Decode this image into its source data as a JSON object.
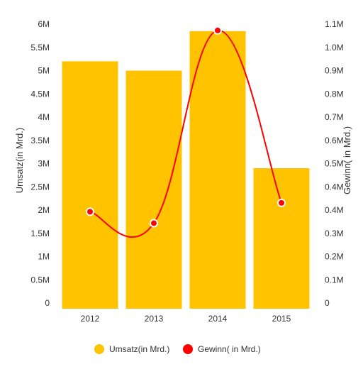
{
  "chart_data": {
    "type": "bar",
    "categories": [
      "2012",
      "2013",
      "2014",
      "2015"
    ],
    "ylabel_left": "Umsatz(in Mrd.)",
    "ylabel_right": "Gewinn( in Mrd.)",
    "y_left_ticks": [
      "0",
      "0.5M",
      "1M",
      "1.5M",
      "2M",
      "2.5M",
      "3M",
      "3.5M",
      "4M",
      "4.5M",
      "5M",
      "5.5M",
      "6M"
    ],
    "y_right_ticks": [
      "0",
      "0.1M",
      "0.2M",
      "0.3M",
      "0.4M",
      "0.4M",
      "0.5M",
      "0.6M",
      "0.7M",
      "0.8M",
      "0.9M",
      "1.0M",
      "1.1M"
    ],
    "ylim_left": [
      0,
      6000000
    ],
    "ylim_right": [
      0,
      1100000
    ],
    "series": [
      {
        "name": "Umsatz(in Mrd.)",
        "type": "bar",
        "axis": "left",
        "color": "#FFC300",
        "values": [
          5200000,
          5000000,
          5850000,
          2900000
        ]
      },
      {
        "name": "Gewinn( in Mrd.)",
        "type": "line",
        "axis": "right",
        "color": "#FF0000",
        "values": [
          360000,
          315000,
          1075000,
          395000
        ]
      }
    ],
    "legend": "bottom",
    "grid": false
  }
}
